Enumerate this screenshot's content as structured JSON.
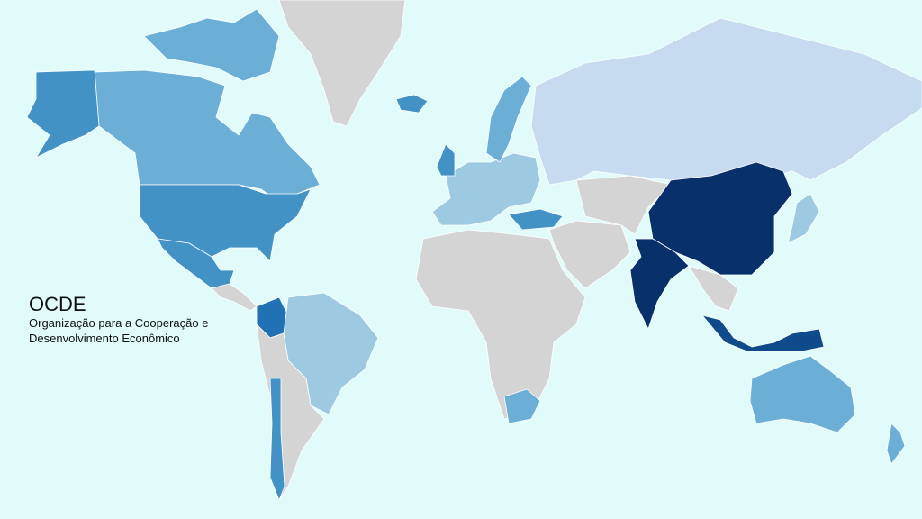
{
  "legend": {
    "title": "OCDE",
    "subtitle": "Organização para a Cooperação e Desenvolvimento Econômico"
  },
  "colors": {
    "ocean": "#e0fbfa",
    "no_data": "#d4d4d4",
    "lightest": "#c6daf0",
    "light": "#9ecae1",
    "medium": "#6baed6",
    "strong": "#4292c6",
    "darker": "#2171b5",
    "dark": "#0f4a8a",
    "darkest": "#08306b"
  },
  "regions": [
    {
      "id": "greenland",
      "shade": "no_data"
    },
    {
      "id": "canada",
      "shade": "medium"
    },
    {
      "id": "canada-islands",
      "shade": "medium"
    },
    {
      "id": "alaska",
      "shade": "strong"
    },
    {
      "id": "usa",
      "shade": "strong"
    },
    {
      "id": "mexico",
      "shade": "strong"
    },
    {
      "id": "central-america",
      "shade": "no_data"
    },
    {
      "id": "colombia",
      "shade": "darker"
    },
    {
      "id": "brazil",
      "shade": "light"
    },
    {
      "id": "south-america-rest",
      "shade": "no_data"
    },
    {
      "id": "chile",
      "shade": "strong"
    },
    {
      "id": "iceland",
      "shade": "strong"
    },
    {
      "id": "europe",
      "shade": "light"
    },
    {
      "id": "scandinavia",
      "shade": "medium"
    },
    {
      "id": "uk",
      "shade": "strong"
    },
    {
      "id": "turkey",
      "shade": "strong"
    },
    {
      "id": "russia",
      "shade": "lightest"
    },
    {
      "id": "africa",
      "shade": "no_data"
    },
    {
      "id": "south-africa",
      "shade": "medium"
    },
    {
      "id": "middle-east",
      "shade": "no_data"
    },
    {
      "id": "central-asia",
      "shade": "no_data"
    },
    {
      "id": "china",
      "shade": "darkest"
    },
    {
      "id": "india",
      "shade": "darkest"
    },
    {
      "id": "southeast-asia",
      "shade": "no_data"
    },
    {
      "id": "indonesia",
      "shade": "dark"
    },
    {
      "id": "japan",
      "shade": "light"
    },
    {
      "id": "australia",
      "shade": "medium"
    },
    {
      "id": "new-zealand",
      "shade": "medium"
    }
  ]
}
